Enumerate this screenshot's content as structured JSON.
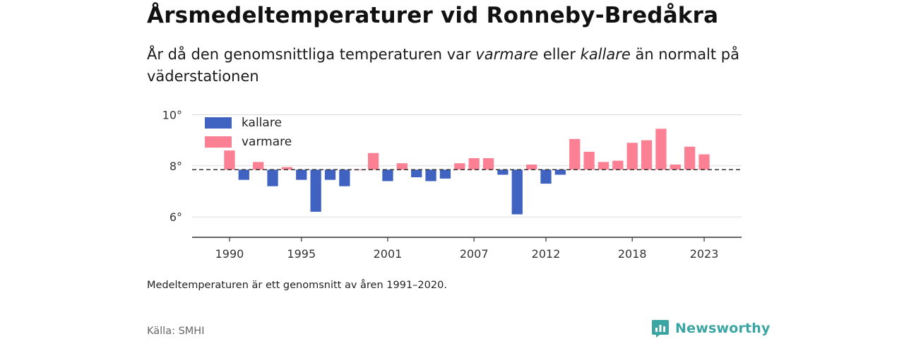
{
  "header": {
    "title": "Årsmedeltemperaturer vid Ronneby-Bredåkra",
    "subtitle_pre": "År då den genomsnittliga temperaturen var ",
    "subtitle_warm": "varmare",
    "subtitle_mid": " eller ",
    "subtitle_cold": "kallare",
    "subtitle_post": " än normalt på väderstationen"
  },
  "footer": {
    "note": "Medeltemperaturen är ett genomsnitt av åren 1991–2020.",
    "source": "Källa: SMHI",
    "brand": "Newsworthy"
  },
  "colors": {
    "colder": "#4063c2",
    "warmer": "#fc8093",
    "brand": "#3aa5a2"
  },
  "chart_data": {
    "type": "bar",
    "baseline": 7.85,
    "ylim": [
      5.2,
      10.4
    ],
    "yticks": [
      6,
      8,
      10
    ],
    "ytick_labels": [
      "6°",
      "8°",
      "10°"
    ],
    "xlim": [
      1987.4,
      2025.6
    ],
    "xticks": [
      1990,
      1995,
      2001,
      2007,
      2012,
      2018,
      2023
    ],
    "xtick_labels": [
      "1990",
      "1995",
      "2001",
      "2007",
      "2012",
      "2018",
      "2023"
    ],
    "grid": true,
    "legend_position": "top-left",
    "legend": [
      {
        "label": "kallare",
        "color": "#4063c2"
      },
      {
        "label": "varmare",
        "color": "#fc8093"
      }
    ],
    "years": [
      1990,
      1991,
      1992,
      1993,
      1994,
      1995,
      1996,
      1997,
      1998,
      1999,
      2000,
      2001,
      2002,
      2003,
      2004,
      2005,
      2006,
      2007,
      2008,
      2009,
      2010,
      2011,
      2012,
      2013,
      2014,
      2015,
      2016,
      2017,
      2018,
      2019,
      2020,
      2021,
      2022,
      2023
    ],
    "values": [
      8.6,
      7.45,
      8.15,
      7.2,
      7.95,
      7.45,
      6.2,
      7.45,
      7.2,
      7.85,
      8.5,
      7.4,
      8.1,
      7.55,
      7.4,
      7.5,
      8.1,
      8.3,
      8.3,
      7.65,
      6.1,
      8.05,
      7.3,
      7.65,
      9.05,
      8.55,
      8.15,
      8.2,
      8.9,
      9.0,
      9.45,
      8.05,
      8.75,
      8.45
    ]
  }
}
